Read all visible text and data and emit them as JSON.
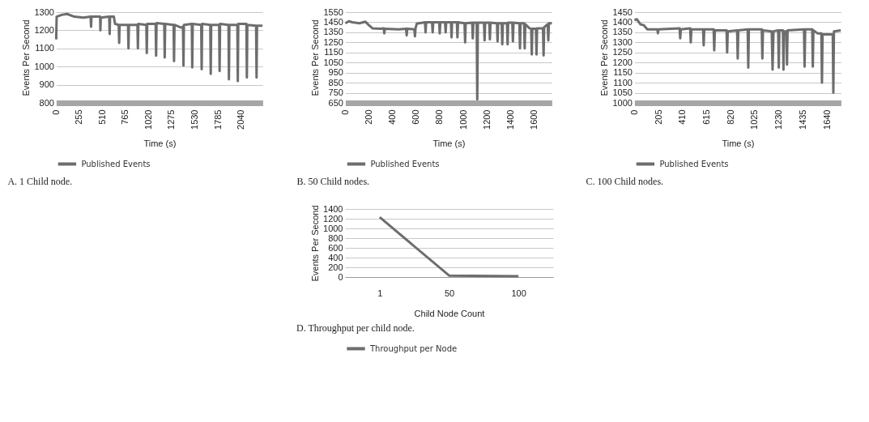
{
  "chart_data": [
    {
      "type": "line",
      "title": "A. 1 Child node.",
      "xlabel": "Time (s)",
      "ylabel": "Events Per Second",
      "grid": "y",
      "legend": "bottom",
      "x": [
        0,
        5,
        60,
        120,
        200,
        300,
        380,
        385,
        390,
        485,
        488,
        492,
        585,
        590,
        595,
        636,
        650,
        690,
        695,
        700,
        793,
        798,
        803,
        897,
        902,
        907,
        995,
        1000,
        1005,
        1098,
        1103,
        1108,
        1193,
        1198,
        1203,
        1296,
        1301,
        1306,
        1380,
        1400,
        1405,
        1410,
        1497,
        1502,
        1507,
        1601,
        1606,
        1611,
        1701,
        1706,
        1711,
        1799,
        1804,
        1809,
        1902,
        1907,
        1912,
        2000,
        2005,
        2010,
        2100,
        2105,
        2110,
        2207,
        2212,
        2217,
        2277
      ],
      "xlim": [
        0,
        2280
      ],
      "xticks": [
        0,
        255,
        510,
        765,
        1020,
        1275,
        1530,
        1785,
        2040
      ],
      "ylim": [
        800,
        1300
      ],
      "yticks": [
        800,
        900,
        1000,
        1100,
        1200,
        1300
      ],
      "series": [
        {
          "name": "Published Events",
          "color": "#6d6d6d",
          "values": [
            1150,
            1275,
            1285,
            1290,
            1275,
            1270,
            1275,
            1220,
            1275,
            1275,
            1200,
            1270,
            1275,
            1180,
            1275,
            1275,
            1235,
            1230,
            1130,
            1230,
            1230,
            1100,
            1230,
            1230,
            1100,
            1235,
            1230,
            1075,
            1235,
            1235,
            1060,
            1240,
            1235,
            1050,
            1235,
            1230,
            1030,
            1230,
            1215,
            1220,
            1005,
            1230,
            1235,
            995,
            1235,
            1230,
            985,
            1235,
            1230,
            960,
            1230,
            1230,
            975,
            1235,
            1230,
            930,
            1230,
            1230,
            920,
            1235,
            1235,
            940,
            1230,
            1225,
            940,
            1225,
            1225
          ]
        }
      ]
    },
    {
      "type": "line",
      "title": "B. 50 Child nodes.",
      "xlabel": "Time (s)",
      "ylabel": "Events Per Second",
      "grid": "y",
      "legend": "bottom",
      "x": [
        0,
        30,
        60,
        120,
        170,
        200,
        230,
        300,
        325,
        330,
        335,
        450,
        515,
        520,
        525,
        585,
        590,
        595,
        605,
        675,
        680,
        685,
        735,
        740,
        745,
        795,
        800,
        805,
        845,
        850,
        855,
        895,
        900,
        905,
        945,
        950,
        955,
        1010,
        1015,
        1020,
        1075,
        1080,
        1085,
        1113,
        1118,
        1123,
        1175,
        1180,
        1185,
        1220,
        1225,
        1230,
        1285,
        1290,
        1295,
        1325,
        1330,
        1335,
        1370,
        1375,
        1380,
        1415,
        1420,
        1425,
        1475,
        1480,
        1485,
        1515,
        1520,
        1525,
        1560,
        1575,
        1580,
        1585,
        1615,
        1620,
        1625,
        1675,
        1680,
        1685,
        1715,
        1720,
        1725,
        1750
      ],
      "xlim": [
        0,
        1750
      ],
      "xticks": [
        0,
        200,
        400,
        600,
        800,
        1000,
        1200,
        1400,
        1600
      ],
      "ylim": [
        650,
        1550
      ],
      "yticks": [
        650,
        750,
        850,
        950,
        1050,
        1150,
        1250,
        1350,
        1450,
        1550
      ],
      "series": [
        {
          "name": "Published Events",
          "color": "#6d6d6d",
          "values": [
            1440,
            1460,
            1450,
            1440,
            1455,
            1420,
            1390,
            1385,
            1390,
            1340,
            1385,
            1380,
            1385,
            1320,
            1385,
            1380,
            1310,
            1390,
            1435,
            1450,
            1350,
            1450,
            1450,
            1350,
            1450,
            1450,
            1340,
            1450,
            1450,
            1350,
            1450,
            1450,
            1300,
            1450,
            1450,
            1300,
            1450,
            1440,
            1250,
            1440,
            1445,
            1290,
            1445,
            1445,
            685,
            1445,
            1445,
            1270,
            1445,
            1445,
            1280,
            1445,
            1440,
            1260,
            1440,
            1440,
            1230,
            1440,
            1440,
            1230,
            1445,
            1445,
            1260,
            1445,
            1440,
            1190,
            1440,
            1440,
            1190,
            1430,
            1390,
            1385,
            1130,
            1385,
            1385,
            1130,
            1390,
            1390,
            1120,
            1400,
            1430,
            1270,
            1440,
            1440
          ]
        }
      ]
    },
    {
      "type": "line",
      "title": "C. 100 Child nodes.",
      "xlabel": "Time (s)",
      "ylabel": "Events Per Second",
      "grid": "y",
      "legend": "bottom",
      "x": [
        0,
        20,
        50,
        80,
        110,
        195,
        200,
        205,
        385,
        390,
        395,
        475,
        480,
        485,
        585,
        590,
        595,
        675,
        680,
        685,
        785,
        790,
        795,
        875,
        880,
        885,
        965,
        970,
        975,
        1085,
        1090,
        1095,
        1170,
        1177,
        1185,
        1225,
        1230,
        1235,
        1265,
        1270,
        1275,
        1295,
        1300,
        1305,
        1445,
        1450,
        1455,
        1515,
        1520,
        1525,
        1560,
        1593,
        1598,
        1603,
        1690,
        1695,
        1700,
        1758
      ],
      "xlim": [
        0,
        1760
      ],
      "xticks": [
        0,
        205,
        410,
        615,
        820,
        1025,
        1230,
        1435,
        1640
      ],
      "ylim": [
        1000,
        1450
      ],
      "yticks": [
        1000,
        1050,
        1100,
        1150,
        1200,
        1250,
        1300,
        1350,
        1400,
        1450
      ],
      "series": [
        {
          "name": "Published Events",
          "color": "#6d6d6d",
          "values": [
            1410,
            1415,
            1390,
            1385,
            1365,
            1365,
            1345,
            1365,
            1370,
            1320,
            1365,
            1370,
            1300,
            1365,
            1365,
            1285,
            1365,
            1365,
            1260,
            1360,
            1360,
            1250,
            1355,
            1360,
            1220,
            1360,
            1365,
            1175,
            1365,
            1365,
            1220,
            1360,
            1355,
            1165,
            1355,
            1360,
            1175,
            1360,
            1360,
            1165,
            1355,
            1355,
            1190,
            1360,
            1365,
            1180,
            1365,
            1365,
            1180,
            1360,
            1345,
            1345,
            1100,
            1340,
            1340,
            1050,
            1355,
            1360
          ]
        }
      ]
    },
    {
      "type": "line",
      "title": "D. Throughput per child node.",
      "xlabel": "Child Node Count",
      "ylabel": "Events Per Second",
      "grid": "y",
      "legend": "bottom",
      "categories": [
        "1",
        "50",
        "100"
      ],
      "ylim": [
        0,
        1400
      ],
      "yticks": [
        0,
        200,
        400,
        600,
        800,
        1000,
        1200,
        1400
      ],
      "series": [
        {
          "name": "Throughput per Node",
          "color": "#6d6d6d",
          "values": [
            1230,
            30,
            15
          ]
        }
      ]
    }
  ]
}
